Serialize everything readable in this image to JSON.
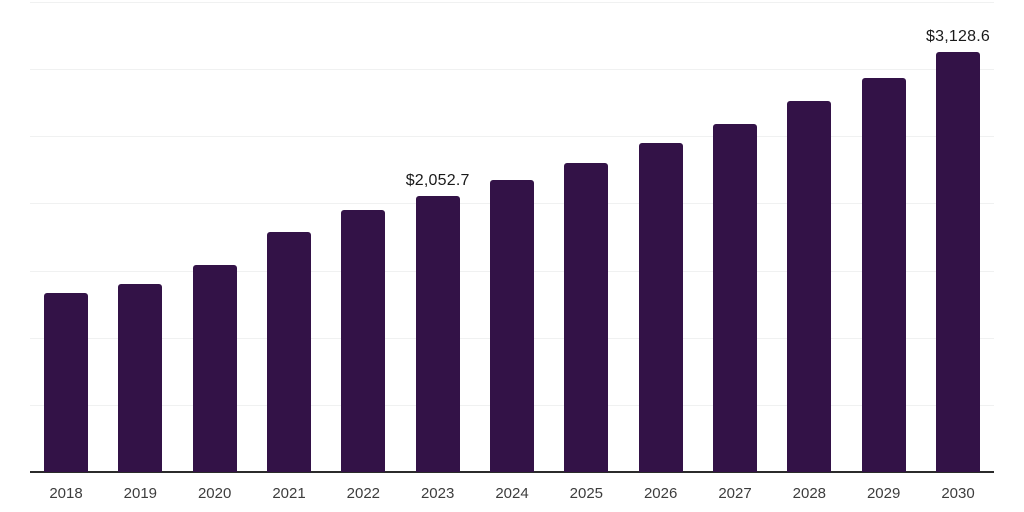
{
  "chart_data": {
    "type": "bar",
    "title": "",
    "xlabel": "",
    "ylabel": "",
    "categories": [
      "2018",
      "2019",
      "2020",
      "2021",
      "2022",
      "2023",
      "2024",
      "2025",
      "2026",
      "2027",
      "2028",
      "2029",
      "2030"
    ],
    "values": [
      1332.4,
      1399.3,
      1538.3,
      1791.0,
      1949.3,
      2052.7,
      2177.4,
      2298.5,
      2447.1,
      2588.3,
      2766.6,
      2937.5,
      3128.6
    ],
    "data_labels": [
      {
        "category": "2023",
        "text": "$2,052.7"
      },
      {
        "category": "2030",
        "text": "$3,128.6"
      }
    ],
    "ylim": [
      0,
      3500
    ],
    "gridline_step": 500,
    "grid": true,
    "legend_position": "none",
    "colors": {
      "bar": "#331247",
      "axis_line": "#2b2b2b",
      "gridline": "#f0f1f1",
      "value_label_text": "#1a1a1a",
      "tick_text": "#3d3d3d",
      "background": "#ffffff"
    }
  }
}
